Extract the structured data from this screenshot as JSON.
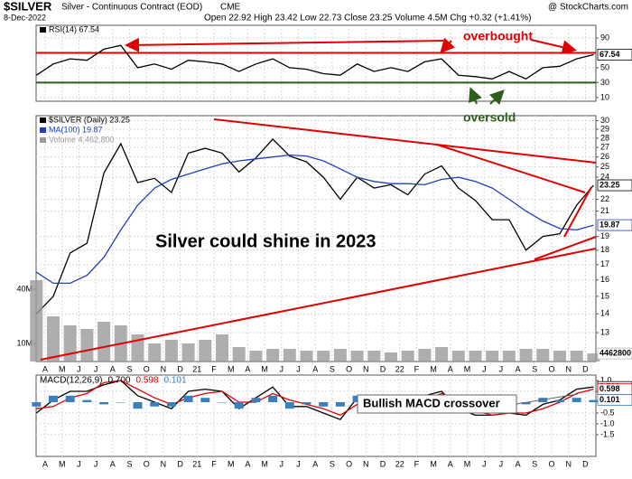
{
  "header": {
    "symbol": "$SILVER",
    "name": "Silver - Continuous Contract (EOD)",
    "exchange": "CME",
    "site": "@ StockCharts.com",
    "date": "8-Dec-2022",
    "quote": "Open 22.92 High 23.42 Low 22.73 Close 23.25 Volume 4.5M Chg +0.32 (+1.41%)"
  },
  "annotations": {
    "overbought": "overbought",
    "oversold": "oversold",
    "headline": "Silver could shine in 2023",
    "macd_note": "Bullish MACD crossover"
  },
  "chart_data": [
    {
      "type": "line",
      "ylim": [
        5,
        107
      ],
      "yticks": [
        90,
        50,
        30,
        10
      ],
      "grid": true,
      "hlines": [
        {
          "value": 70,
          "color": "#e00000"
        },
        {
          "value": 30,
          "color": "#2e5e1e"
        }
      ],
      "series": [
        {
          "name": "RSI(14) 67.54",
          "color": "#000000",
          "values": [
            40,
            55,
            62,
            60,
            75,
            80,
            50,
            55,
            48,
            60,
            58,
            55,
            45,
            55,
            62,
            50,
            48,
            42,
            40,
            55,
            45,
            50,
            45,
            58,
            62,
            40,
            38,
            35,
            45,
            35,
            50,
            52,
            62,
            67.54
          ]
        }
      ]
    },
    {
      "type": "line",
      "log_scale": true,
      "ylim": [
        11.6,
        30.6
      ],
      "yticks": [
        30,
        29,
        28,
        27,
        26,
        25,
        24,
        22,
        21,
        19,
        18,
        17,
        16,
        15,
        14,
        13
      ],
      "grid": true,
      "y2lim": [
        0,
        136000000
      ],
      "y2ticks": [
        {
          "value": 10000000,
          "label": "10M"
        },
        {
          "value": 40000000,
          "label": "40M"
        }
      ],
      "categories": [
        null,
        "A",
        "M",
        "J",
        "J",
        "A",
        "S",
        "O",
        "N",
        "D",
        "21",
        "F",
        "M",
        "A",
        "M",
        "J",
        "J",
        "A",
        "S",
        "O",
        "N",
        "D",
        "22",
        "F",
        "M",
        "A",
        "M",
        "J",
        "J",
        "A",
        "S",
        "O",
        "N",
        "D"
      ],
      "series": [
        {
          "name": "$SILVER (Daily) 23.25",
          "color": "#000000",
          "values": [
            14.0,
            15.0,
            17.8,
            18.5,
            24.4,
            27.4,
            23.5,
            23.9,
            22.6,
            26.4,
            26.9,
            26.4,
            24.5,
            25.9,
            27.9,
            26.1,
            25.5,
            24.0,
            22.0,
            24.0,
            23.0,
            23.3,
            22.4,
            24.3,
            25.1,
            23.0,
            21.9,
            20.3,
            20.3,
            18.0,
            19.0,
            19.2,
            21.5,
            23.25
          ]
        },
        {
          "name": "MA(100) 19.87",
          "color": "#1f3fbf",
          "values": [
            16.5,
            15.8,
            15.8,
            16.3,
            17.5,
            19.5,
            21.5,
            23.0,
            23.8,
            24.3,
            24.8,
            25.3,
            25.6,
            25.8,
            26.0,
            26.2,
            26.1,
            25.6,
            24.8,
            24.0,
            23.6,
            23.4,
            23.4,
            23.3,
            23.8,
            24.0,
            23.6,
            23.0,
            22.0,
            21.0,
            20.2,
            19.6,
            19.5,
            19.87
          ]
        },
        {
          "name": "Volume 4,462,800",
          "color": "#9a9a9a",
          "axis": "y2",
          "type": "bar",
          "values": [
            45000000,
            25000000,
            20000000,
            18000000,
            22000000,
            20000000,
            15000000,
            10000000,
            12000000,
            10000000,
            12000000,
            15000000,
            8000000,
            6000000,
            7000000,
            7000000,
            6000000,
            6000000,
            7000000,
            6000000,
            6000000,
            5000000,
            6000000,
            7000000,
            8000000,
            6000000,
            6000000,
            6000000,
            6000000,
            7000000,
            7000000,
            6000000,
            6000000,
            4462800
          ]
        }
      ]
    },
    {
      "type": "line",
      "title": "MACD(12,26,9)",
      "ylim": [
        -2.5,
        1.25
      ],
      "yticks": [
        {
          "value": 1,
          "label": "1.0"
        },
        0.5,
        -0.5,
        {
          "value": -1,
          "label": "-1.0"
        },
        -1.5
      ],
      "grid": true,
      "categories": [
        null,
        "A",
        "M",
        "J",
        "J",
        "A",
        "S",
        "O",
        "N",
        "D",
        "21",
        "F",
        "M",
        "A",
        "M",
        "J",
        "J",
        "A",
        "S",
        "O",
        "N",
        "D",
        "22",
        "F",
        "M",
        "A",
        "M",
        "J",
        "J",
        "A",
        "S",
        "O",
        "N",
        "D"
      ],
      "series": [
        {
          "color": "#000000",
          "values": [
            -0.5,
            0.1,
            0.5,
            0.5,
            0.8,
            1.0,
            0.3,
            0.0,
            -0.3,
            0.5,
            0.6,
            0.5,
            -0.3,
            0.2,
            0.7,
            -0.2,
            -0.2,
            -0.5,
            -0.8,
            0.2,
            -0.2,
            -0.2,
            -0.2,
            0.3,
            0.5,
            -0.3,
            -0.6,
            -0.6,
            -0.5,
            -0.6,
            -0.1,
            0.1,
            0.6,
            0.7
          ],
          "value_labels": [
            null,
            null,
            null,
            null,
            null,
            null,
            null,
            null,
            null,
            null,
            null,
            null,
            null,
            null,
            null,
            null,
            null,
            null,
            null,
            null,
            null,
            null,
            null,
            null,
            null,
            null,
            null,
            null,
            null,
            null,
            null,
            null,
            null,
            "0.700"
          ]
        },
        {
          "color": "#e00000",
          "values": [
            -0.3,
            -0.2,
            0.2,
            0.4,
            0.9,
            1.0,
            0.6,
            0.2,
            -0.1,
            0.2,
            0.4,
            0.5,
            0.0,
            0.0,
            0.4,
            0.1,
            -0.1,
            -0.3,
            -0.6,
            -0.1,
            -0.1,
            -0.2,
            -0.2,
            0.1,
            0.4,
            0.0,
            -0.4,
            -0.6,
            -0.5,
            -0.5,
            -0.3,
            0.0,
            0.4,
            0.598
          ]
        },
        {
          "color": "#3a7fc0",
          "type": "bar",
          "values": [
            -0.2,
            0.3,
            0.3,
            0.1,
            -0.1,
            0.0,
            -0.3,
            -0.2,
            -0.2,
            0.3,
            0.2,
            0.0,
            -0.3,
            0.2,
            0.3,
            -0.3,
            -0.1,
            -0.2,
            -0.2,
            0.3,
            -0.1,
            0.0,
            0.0,
            0.2,
            0.1,
            -0.3,
            -0.2,
            0.0,
            0.0,
            -0.1,
            0.2,
            0.1,
            0.2,
            0.101
          ]
        }
      ]
    }
  ]
}
